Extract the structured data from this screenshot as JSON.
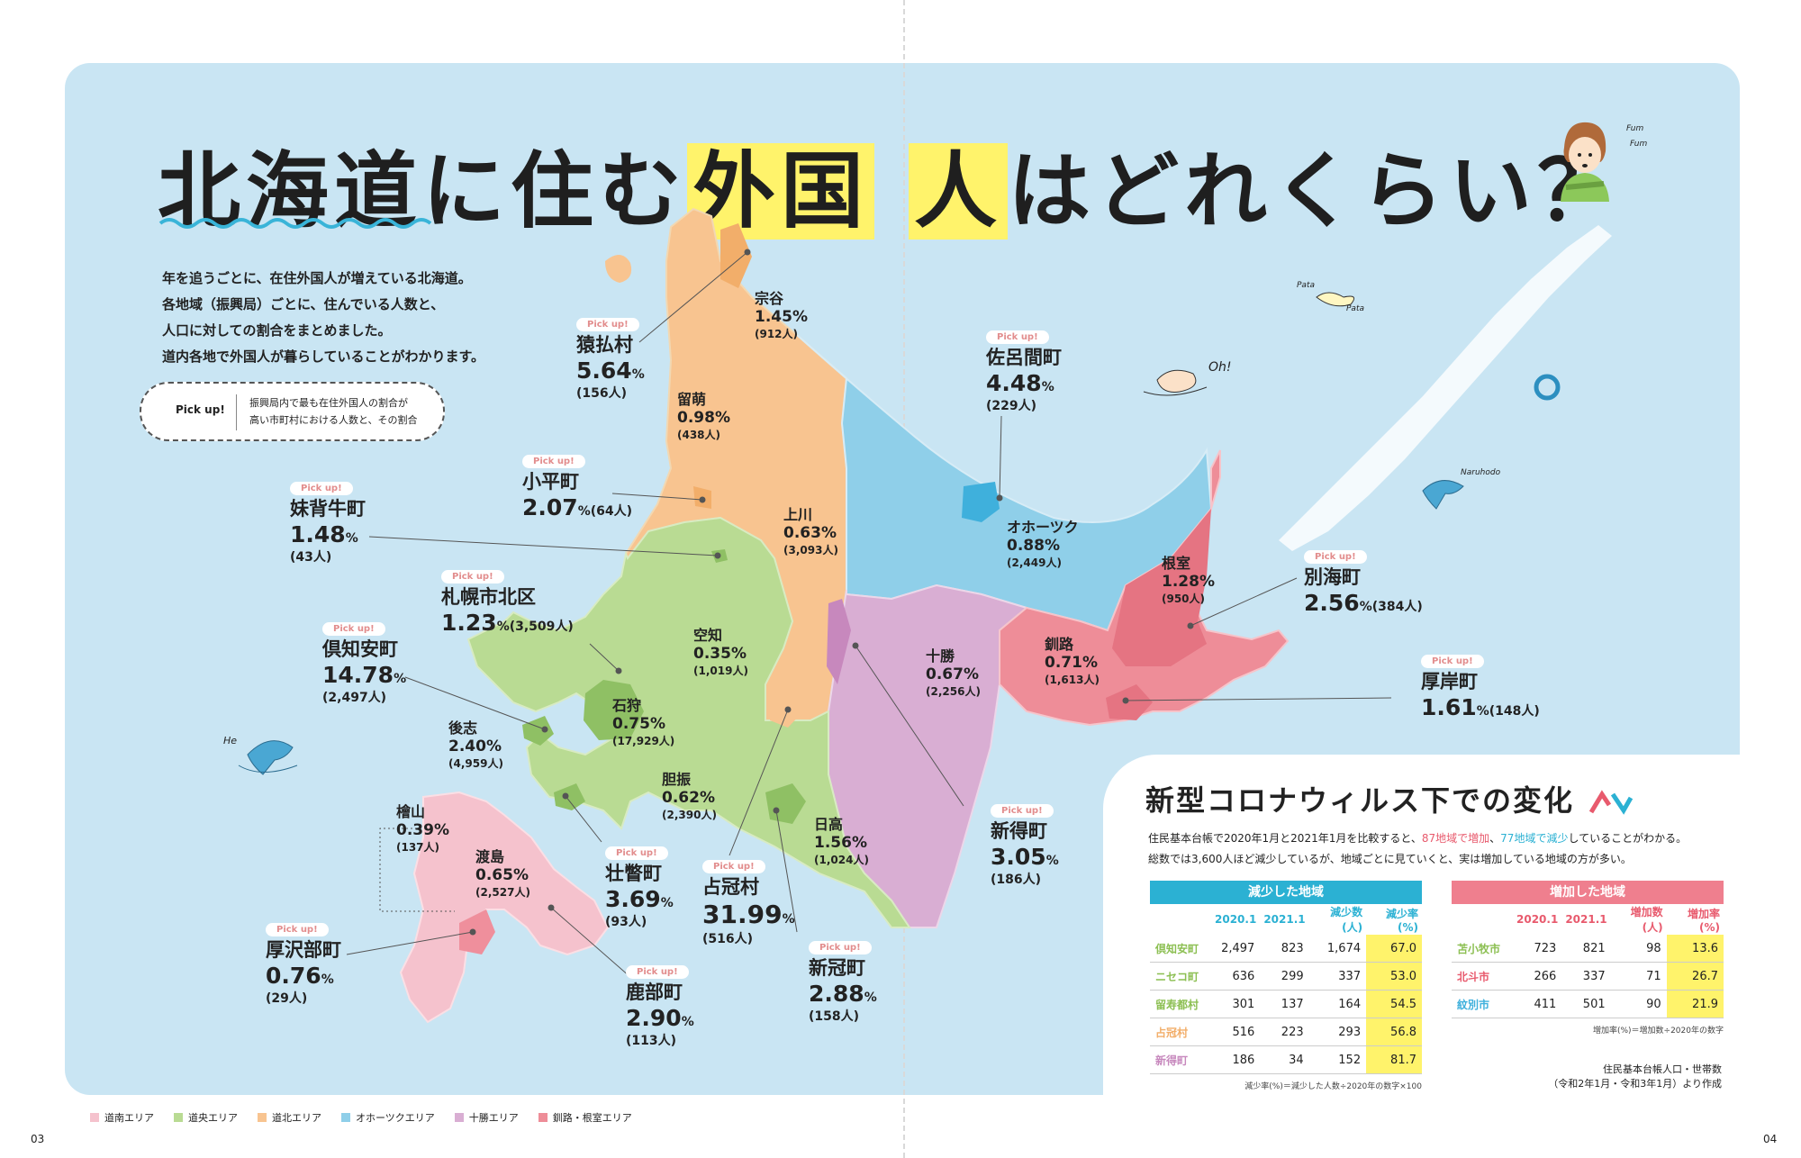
{
  "title": {
    "pre": "北海道に住む",
    "hl1": "外国",
    "hl2": "人",
    "post": "はどれくらい？"
  },
  "intro": [
    "年を追うごとに、在住外国人が増えている北海道。",
    "各地域（振興局）ごとに、住んでいる人数と、",
    "人口に対しての割合をまとめました。",
    "道内各地で外国人が暮らしていることがわかります。"
  ],
  "legend_box": {
    "label": "Pick up!",
    "text1": "振興局内で最も在住外国人の割合が",
    "text2": "高い市町村における人数と、その割合"
  },
  "doodles": {
    "fum": "Fum",
    "fum2": "Fum",
    "pata": "Pata",
    "pata2": "Pata",
    "oh": "Oh!",
    "naruhodo": "Naruhodo",
    "he": "He"
  },
  "pick_label": "Pick up!",
  "areas": [
    {
      "name": "宗谷",
      "pct": "1.45",
      "count": "(912人)"
    },
    {
      "name": "留萌",
      "pct": "0.98",
      "count": "(438人)"
    },
    {
      "name": "上川",
      "pct": "0.63",
      "count": "(3,093人)"
    },
    {
      "name": "オホーツク",
      "pct": "0.88",
      "count": "(2,449人)"
    },
    {
      "name": "根室",
      "pct": "1.28",
      "count": "(950人)"
    },
    {
      "name": "釧路",
      "pct": "0.71",
      "count": "(1,613人)"
    },
    {
      "name": "十勝",
      "pct": "0.67",
      "count": "(2,256人)"
    },
    {
      "name": "空知",
      "pct": "0.35",
      "count": "(1,019人)"
    },
    {
      "name": "石狩",
      "pct": "0.75",
      "count": "(17,929人)"
    },
    {
      "name": "後志",
      "pct": "2.40",
      "count": "(4,959人)"
    },
    {
      "name": "胆振",
      "pct": "0.62",
      "count": "(2,390人)"
    },
    {
      "name": "日高",
      "pct": "1.56",
      "count": "(1,024人)"
    },
    {
      "name": "檜山",
      "pct": "0.39",
      "count": "(137人)"
    },
    {
      "name": "渡島",
      "pct": "0.65",
      "count": "(2,527人)"
    }
  ],
  "picks": [
    {
      "name": "猿払村",
      "pct": "5.64",
      "count": "(156人)"
    },
    {
      "name": "小平町",
      "pct": "2.07",
      "count": "(64人)"
    },
    {
      "name": "妹背牛町",
      "pct": "1.48",
      "count": "(43人)"
    },
    {
      "name": "札幌市北区",
      "pct": "1.23",
      "count": "(3,509人)"
    },
    {
      "name": "倶知安町",
      "pct": "14.78",
      "count": "(2,497人)"
    },
    {
      "name": "佐呂間町",
      "pct": "4.48",
      "count": "(229人)"
    },
    {
      "name": "別海町",
      "pct": "2.56",
      "count": "(384人)"
    },
    {
      "name": "厚岸町",
      "pct": "1.61",
      "count": "(148人)"
    },
    {
      "name": "新得町",
      "pct": "3.05",
      "count": "(186人)"
    },
    {
      "name": "壮瞥町",
      "pct": "3.69",
      "count": "(93人)"
    },
    {
      "name": "占冠村",
      "pct": "31.99",
      "count": "(516人)"
    },
    {
      "name": "新冠町",
      "pct": "2.88",
      "count": "(158人)"
    },
    {
      "name": "鹿部町",
      "pct": "2.90",
      "count": "(113人)"
    },
    {
      "name": "厚沢部町",
      "pct": "0.76",
      "count": "(29人)"
    }
  ],
  "percent_sign": "%",
  "covid": {
    "title": "新型コロナウィルス下での変化",
    "desc1_a": "住民基本台帳で2020年1月と2021年1月を比較すると、",
    "desc1_b": "87地域で増加",
    "desc1_c": "、",
    "desc1_d": "77地域で減少",
    "desc1_e": "していることがわかる。",
    "desc2": "総数では3,600人ほど減少しているが、地域ごとに見ていくと、実は増加している地域の方が多い。",
    "decrease": {
      "header": "減少した地域",
      "columns": [
        "2020.1",
        "2021.1",
        "減少数(人)",
        "減少率(%)"
      ],
      "rows": [
        {
          "name": "倶知安町",
          "v": [
            "2,497",
            "823",
            "1,674",
            "67.0"
          ]
        },
        {
          "name": "ニセコ町",
          "v": [
            "636",
            "299",
            "337",
            "53.0"
          ]
        },
        {
          "name": "留寿都村",
          "v": [
            "301",
            "137",
            "164",
            "54.5"
          ]
        },
        {
          "name": "占冠村",
          "v": [
            "516",
            "223",
            "293",
            "56.8"
          ]
        },
        {
          "name": "新得町",
          "v": [
            "186",
            "34",
            "152",
            "81.7"
          ]
        }
      ],
      "note": "減少率(%)＝減少した人数÷2020年の数字×100"
    },
    "increase": {
      "header": "増加した地域",
      "columns": [
        "2020.1",
        "2021.1",
        "増加数(人)",
        "増加率(%)"
      ],
      "rows": [
        {
          "name": "苫小牧市",
          "v": [
            "723",
            "821",
            "98",
            "13.6"
          ]
        },
        {
          "name": "北斗市",
          "v": [
            "266",
            "337",
            "71",
            "26.7"
          ]
        },
        {
          "name": "紋別市",
          "v": [
            "411",
            "501",
            "90",
            "21.9"
          ]
        }
      ],
      "note": "増加率(%)＝増加数÷2020年の数字"
    },
    "source1": "住民基本台帳人口・世帯数",
    "source2": "（令和2年1月・令和3年1月）より作成"
  },
  "map_legend": [
    {
      "label": "道南エリア",
      "color": "#f5c2cd"
    },
    {
      "label": "道央エリア",
      "color": "#b9db93"
    },
    {
      "label": "道北エリア",
      "color": "#f8c490"
    },
    {
      "label": "オホーツクエリア",
      "color": "#8fcfe9"
    },
    {
      "label": "十勝エリア",
      "color": "#d9aed3"
    },
    {
      "label": "釧路・根室エリア",
      "color": "#ee8d98"
    }
  ],
  "page_left": "03",
  "page_right": "04"
}
